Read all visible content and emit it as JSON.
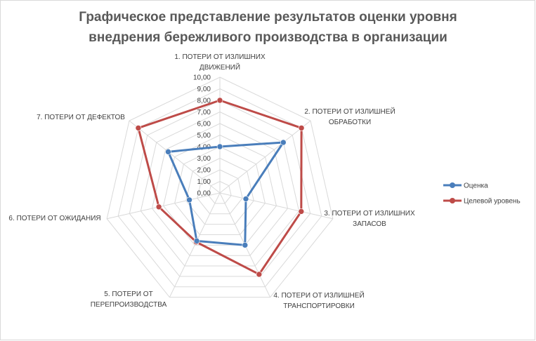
{
  "chart_data": {
    "type": "radar",
    "title_lines": [
      "Графическое представление результатов  оценки уровня",
      "внедрения бережливого  производства  в организации"
    ],
    "categories": [
      [
        "1. ПОТЕРИ ОТ ИЗЛИШНИХ",
        "ДВИЖЕНИЙ"
      ],
      [
        "2. ПОТЕРИ ОТ ИЗЛИШНЕЙ",
        "ОБРАБОТКИ"
      ],
      [
        "3. ПОТЕРИ ОТ ИЗЛИШНИХ",
        "ЗАПАСОВ"
      ],
      [
        "4. ПОТЕРИ ОТ ИЗЛИШНЕЙ",
        "ТРАНСПОРТИРОВКИ"
      ],
      [
        "5. ПОТЕРИ ОТ",
        "ПЕРЕПРОИЗВОДСТВА"
      ],
      [
        "6. ПОТЕРИ ОТ ОЖИДАНИЯ"
      ],
      [
        "7. ПОТЕРИ ОТ ДЕФЕКТОВ"
      ]
    ],
    "r_range": [
      0,
      10
    ],
    "tick_labels": [
      "0,00",
      "1,00",
      "2,00",
      "3,00",
      "4,00",
      "5,00",
      "6,00",
      "7,00",
      "8,00",
      "9,00",
      "10,00"
    ],
    "grid": true,
    "legend_position": "right",
    "series": [
      {
        "name": "Оценка",
        "color": "#4a7ebb",
        "values": [
          4.0,
          7.0,
          2.3,
          5.0,
          4.6,
          2.7,
          5.7
        ]
      },
      {
        "name": "Целевой уровень",
        "color": "#be4b48",
        "values": [
          8.0,
          9.0,
          7.2,
          7.8,
          4.7,
          5.4,
          9.0
        ]
      }
    ]
  }
}
